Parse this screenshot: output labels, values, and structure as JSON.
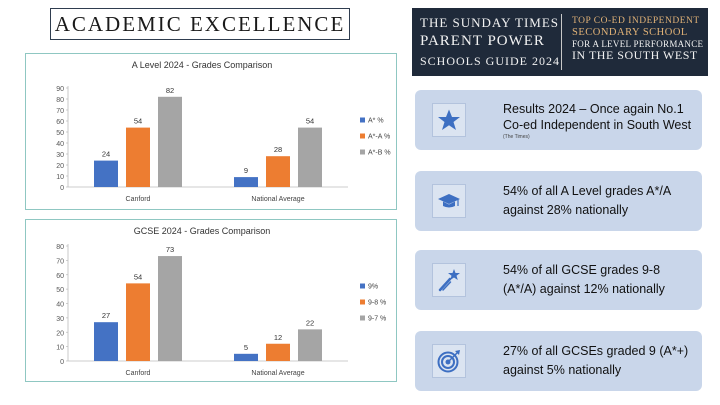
{
  "page_title": "ACADEMIC EXCELLENCE",
  "banner": {
    "left_line1": "THE SUNDAY TIMES",
    "left_line2": "PARENT POWER",
    "left_line3": "SCHOOLS GUIDE 2024",
    "right_line1": "TOP CO-ED INDEPENDENT",
    "right_line2": "SECONDARY SCHOOL",
    "right_line3": "FOR A LEVEL PERFORMANCE",
    "right_line4": "IN THE SOUTH WEST"
  },
  "colors": {
    "blue": "#4472c4",
    "orange": "#ed7d31",
    "gray": "#a5a5a5",
    "card": "#c9d6ea",
    "icon": "#3d6fc2"
  },
  "chart_data": [
    {
      "type": "bar",
      "title": "A Level 2024 - Grades Comparison",
      "categories": [
        "Canford",
        "National Average"
      ],
      "series": [
        {
          "name": "A* %",
          "values": [
            24,
            9
          ]
        },
        {
          "name": "A*-A %",
          "values": [
            54,
            28
          ]
        },
        {
          "name": "A*-B %",
          "values": [
            82,
            54
          ]
        }
      ],
      "ylim": [
        0,
        90
      ],
      "yticks": [
        0,
        10,
        20,
        30,
        40,
        50,
        60,
        70,
        80,
        90
      ],
      "legend": "right",
      "grid": false
    },
    {
      "type": "bar",
      "title": "GCSE 2024 - Grades Comparison",
      "categories": [
        "Canford",
        "National Average"
      ],
      "series": [
        {
          "name": "9%",
          "values": [
            27,
            5
          ]
        },
        {
          "name": "9-8 %",
          "values": [
            54,
            12
          ]
        },
        {
          "name": "9-7 %",
          "values": [
            73,
            22
          ]
        }
      ],
      "ylim": [
        0,
        80
      ],
      "yticks": [
        0,
        10,
        20,
        30,
        40,
        50,
        60,
        70,
        80
      ],
      "legend": "right",
      "grid": false
    }
  ],
  "cards": [
    {
      "icon": "star-icon",
      "line1": "Results 2024 – Once again No.1",
      "line2": "Co-ed Independent in South West",
      "sub": "(The Times)"
    },
    {
      "icon": "graduation-cap-icon",
      "line1": "54% of all A Level grades A*/A",
      "line2": "against 28% nationally"
    },
    {
      "icon": "shooting-star-icon",
      "line1": "54% of all GCSE grades 9-8",
      "line2": "(A*/A) against 12% nationally"
    },
    {
      "icon": "target-icon",
      "line1": "27% of all GCSEs graded 9 (A*+)",
      "line2": "against 5% nationally"
    }
  ]
}
